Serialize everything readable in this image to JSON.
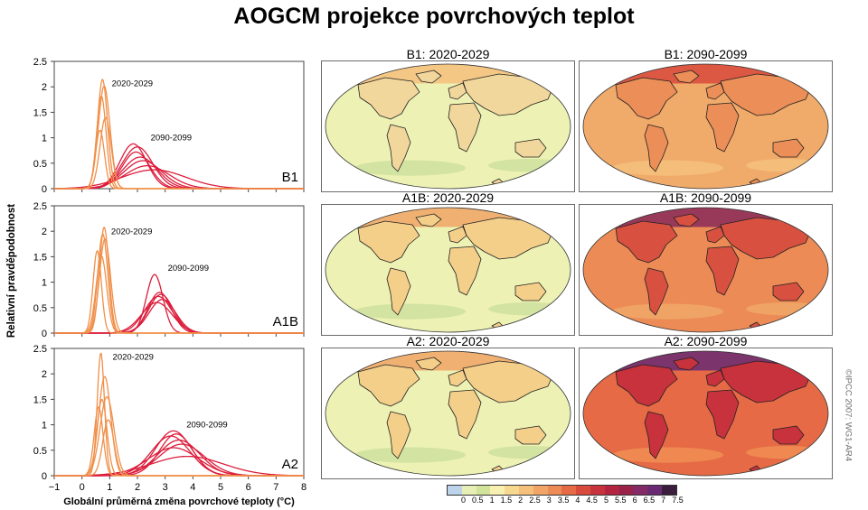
{
  "title": "AOGCM projekce povrchových teplot",
  "copyright": "©IPCC 2007: WG1-AR4",
  "colors": {
    "early_lines": "#f0904a",
    "late_lines": "#dc1e3c",
    "colorbar": [
      "#bcd3ea",
      "#e7efb7",
      "#d2e39b",
      "#f7f0b0",
      "#f6d88f",
      "#f4c07c",
      "#f0a566",
      "#ec8b55",
      "#e56a45",
      "#d84a3c",
      "#c8323c",
      "#b2243f",
      "#9a2148",
      "#842a67",
      "#6a2a73",
      "#3b1d3e"
    ]
  },
  "chart_data": {
    "type": "line",
    "title": "AOGCM projekce povrchových teplot",
    "ylabel": "Relativní pravděpodobnost",
    "xlabel": "Globální průměrná změna povrchové teploty (°C)",
    "xlim": [
      -1,
      8
    ],
    "xticks": [
      "−1",
      "0",
      "1",
      "2",
      "3",
      "4",
      "5",
      "6",
      "7",
      "8"
    ],
    "ylim": [
      0,
      2.5
    ],
    "yticks": [
      "0",
      "0.5",
      "1",
      "1.5",
      "2",
      "2.5"
    ],
    "panels": [
      {
        "scenario": "B1",
        "label_early": "2020-2029",
        "label_late": "2090-2099",
        "early_curves": [
          {
            "mu": 0.74,
            "sigma": 0.18,
            "peak": 2.15
          },
          {
            "mu": 0.8,
            "sigma": 0.21,
            "peak": 2.02
          },
          {
            "mu": 0.7,
            "sigma": 0.17,
            "peak": 1.82
          },
          {
            "mu": 0.85,
            "sigma": 0.2,
            "peak": 1.4
          },
          {
            "mu": 0.65,
            "sigma": 0.16,
            "peak": 1.15
          }
        ],
        "late_curves": [
          {
            "mu": 1.85,
            "sigma": 0.48,
            "peak": 0.88
          },
          {
            "mu": 2.0,
            "sigma": 0.55,
            "peak": 0.82
          },
          {
            "mu": 1.95,
            "sigma": 0.5,
            "peak": 0.72
          },
          {
            "mu": 2.1,
            "sigma": 0.62,
            "peak": 0.62
          },
          {
            "mu": 2.2,
            "sigma": 0.68,
            "peak": 0.55
          },
          {
            "mu": 2.35,
            "sigma": 0.8,
            "peak": 0.45
          },
          {
            "mu": 2.6,
            "sigma": 1.15,
            "peak": 0.37
          }
        ]
      },
      {
        "scenario": "A1B",
        "label_early": "2020-2029",
        "label_late": "2090-2099",
        "early_curves": [
          {
            "mu": 0.8,
            "sigma": 0.17,
            "peak": 2.08
          },
          {
            "mu": 0.75,
            "sigma": 0.18,
            "peak": 1.95
          },
          {
            "mu": 0.83,
            "sigma": 0.2,
            "peak": 1.85
          },
          {
            "mu": 0.55,
            "sigma": 0.15,
            "peak": 1.62
          },
          {
            "mu": 0.7,
            "sigma": 0.19,
            "peak": 1.52
          }
        ],
        "late_curves": [
          {
            "mu": 2.62,
            "sigma": 0.3,
            "peak": 1.15
          },
          {
            "mu": 2.8,
            "sigma": 0.42,
            "peak": 0.8
          },
          {
            "mu": 2.85,
            "sigma": 0.45,
            "peak": 0.76
          },
          {
            "mu": 2.75,
            "sigma": 0.5,
            "peak": 0.72
          },
          {
            "mu": 2.9,
            "sigma": 0.48,
            "peak": 0.66
          },
          {
            "mu": 2.7,
            "sigma": 0.55,
            "peak": 0.6
          }
        ]
      },
      {
        "scenario": "A2",
        "label_early": "2020-2029",
        "label_late": "2090-2099",
        "early_curves": [
          {
            "mu": 0.68,
            "sigma": 0.13,
            "peak": 2.42
          },
          {
            "mu": 0.82,
            "sigma": 0.22,
            "peak": 1.95
          },
          {
            "mu": 0.9,
            "sigma": 0.25,
            "peak": 1.55
          },
          {
            "mu": 0.72,
            "sigma": 0.18,
            "peak": 1.5
          },
          {
            "mu": 0.6,
            "sigma": 0.16,
            "peak": 1.35
          },
          {
            "mu": 0.95,
            "sigma": 0.2,
            "peak": 1.1
          }
        ],
        "late_curves": [
          {
            "mu": 3.3,
            "sigma": 0.65,
            "peak": 0.88
          },
          {
            "mu": 3.4,
            "sigma": 0.6,
            "peak": 0.82
          },
          {
            "mu": 3.2,
            "sigma": 0.7,
            "peak": 0.78
          },
          {
            "mu": 3.5,
            "sigma": 0.75,
            "peak": 0.7
          },
          {
            "mu": 3.6,
            "sigma": 0.82,
            "peak": 0.62
          },
          {
            "mu": 3.3,
            "sigma": 0.9,
            "peak": 0.55
          },
          {
            "mu": 3.8,
            "sigma": 1.3,
            "peak": 0.38
          }
        ]
      }
    ]
  },
  "maps": [
    {
      "title": "B1: 2020-2029",
      "base": "#edf2b4",
      "land": "#f2d79c",
      "accent": "#cfe1a0",
      "hot": "#f4c07c"
    },
    {
      "title": "B1: 2090-2099",
      "base": "#f0aa6a",
      "land": "#eb8e57",
      "accent": "#f4c07c",
      "hot": "#d84a3c"
    },
    {
      "title": "A1B: 2020-2029",
      "base": "#edf2b4",
      "land": "#f4cf8a",
      "accent": "#cfe1a0",
      "hot": "#f0a566"
    },
    {
      "title": "A1B: 2090-2099",
      "base": "#ec8b55",
      "land": "#d8503f",
      "accent": "#f0a566",
      "hot": "#8a2a5c"
    },
    {
      "title": "A2: 2020-2029",
      "base": "#edf2b4",
      "land": "#f4cf8a",
      "accent": "#cfe1a0",
      "hot": "#f0a566"
    },
    {
      "title": "A2: 2090-2099",
      "base": "#e56a45",
      "land": "#c8323c",
      "accent": "#f08c52",
      "hot": "#6a2a73"
    }
  ],
  "colorbar_labels": [
    "0",
    "0.5",
    "1",
    "1.5",
    "2",
    "2.5",
    "3",
    "3.5",
    "4",
    "4.5",
    "5",
    "5.5",
    "6",
    "6.5",
    "7",
    "7.5"
  ]
}
